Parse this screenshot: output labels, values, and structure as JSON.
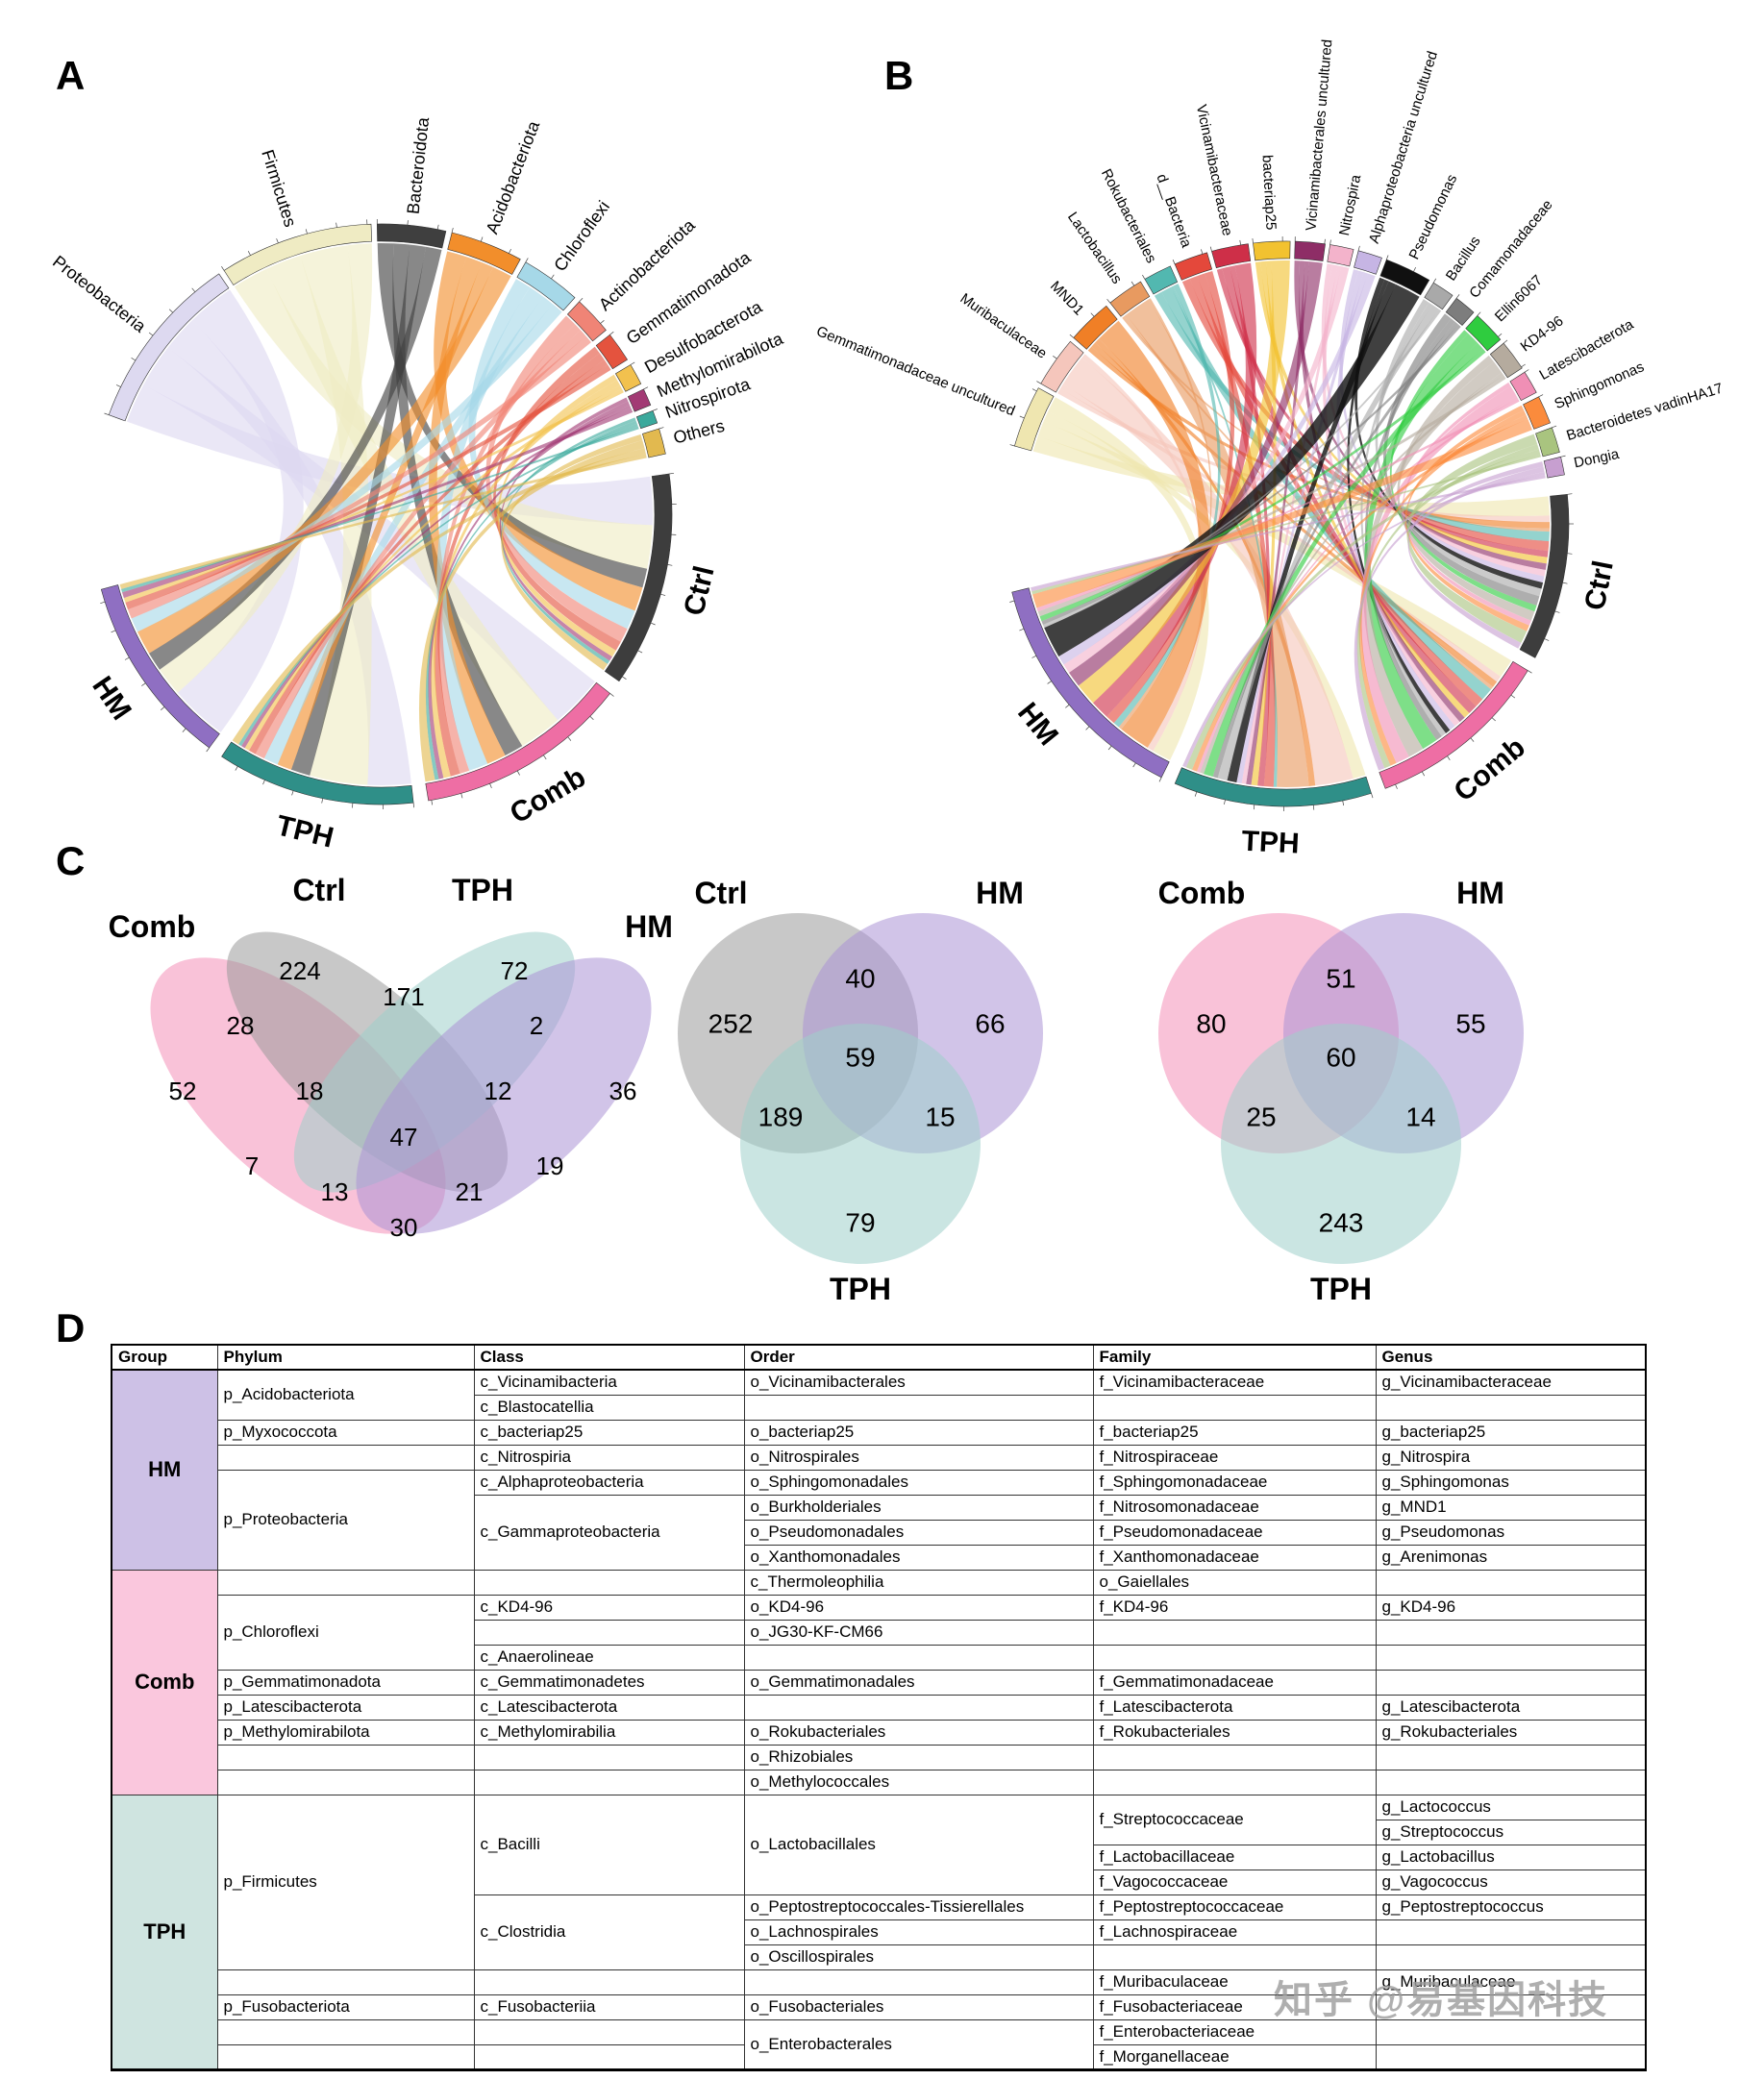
{
  "panels": {
    "a": "A",
    "b": "B",
    "c": "C",
    "d": "D"
  },
  "watermark": "知乎 @易基因科技",
  "chart_data": [
    {
      "id": "chord_phylum_vs_groups",
      "type": "chord",
      "panel": "A",
      "groups": [
        {
          "name": "Ctrl",
          "color": "#3D3D3D"
        },
        {
          "name": "Comb",
          "color": "#EE6EA4"
        },
        {
          "name": "TPH",
          "color": "#2F8F88"
        },
        {
          "name": "HM",
          "color": "#8F6FC2"
        }
      ],
      "taxa": [
        {
          "name": "Proteobacteria",
          "color": "#DDD9F0",
          "flows": [
            10,
            11,
            9,
            12
          ]
        },
        {
          "name": "Firmicutes",
          "color": "#EFEBC3",
          "flows": [
            9,
            9,
            12,
            6
          ]
        },
        {
          "name": "Bacteroidota",
          "color": "#3F3F3F",
          "flows": [
            4,
            4,
            4,
            4
          ]
        },
        {
          "name": "Acidobacteriota",
          "color": "#F28E2B",
          "flows": [
            5,
            4,
            3,
            5
          ]
        },
        {
          "name": "Chloroflexi",
          "color": "#A6D8E8",
          "flows": [
            4,
            4,
            3,
            3
          ]
        },
        {
          "name": "Actinobacteriota",
          "color": "#F08476",
          "flows": [
            3,
            2,
            2,
            2
          ]
        },
        {
          "name": "Gemmatimonadota",
          "color": "#E4533E",
          "flows": [
            2,
            2,
            1.5,
            1.5
          ]
        },
        {
          "name": "Desulfobacterota",
          "color": "#F2C14E",
          "flows": [
            1.5,
            1.5,
            1,
            1
          ]
        },
        {
          "name": "Methylomirabilota",
          "color": "#A23A74",
          "flows": [
            1,
            1,
            0.8,
            1.2
          ]
        },
        {
          "name": "Nitrospirota",
          "color": "#3BA99C",
          "flows": [
            0.8,
            0.8,
            0.7,
            0.7
          ]
        },
        {
          "name": "Others",
          "color": "#E2B94F",
          "flows": [
            1.5,
            2,
            1.5,
            1
          ]
        }
      ]
    },
    {
      "id": "chord_genus_vs_groups",
      "type": "chord",
      "panel": "B",
      "groups": [
        {
          "name": "Ctrl",
          "color": "#3D3D3D"
        },
        {
          "name": "Comb",
          "color": "#EE6EA4"
        },
        {
          "name": "TPH",
          "color": "#2F8F88"
        },
        {
          "name": "HM",
          "color": "#8F6FC2"
        }
      ],
      "taxa": [
        {
          "name": "Gemmatimonadaceae uncultured",
          "color": "#EFE6B0",
          "flows": [
            3,
            3,
            2,
            3
          ]
        },
        {
          "name": "Muribaculaceae",
          "color": "#F5C6BC",
          "flows": [
            1,
            1,
            6,
            1
          ]
        },
        {
          "name": "MND1",
          "color": "#F07F26",
          "flows": [
            1,
            1,
            1,
            5
          ]
        },
        {
          "name": "Lactobacillus",
          "color": "#E89A60",
          "flows": [
            0.5,
            0.5,
            5,
            0.5
          ]
        },
        {
          "name": "Rokubacteriales",
          "color": "#52B8B0",
          "flows": [
            1.5,
            2,
            0.5,
            1
          ]
        },
        {
          "name": "d__Bacteria",
          "color": "#E4483B",
          "flows": [
            1.5,
            1.5,
            1.5,
            1.5
          ]
        },
        {
          "name": "Vicinamibacteraceae",
          "color": "#CE2F48",
          "flows": [
            1,
            1.5,
            1,
            3
          ]
        },
        {
          "name": "bacteriap25",
          "color": "#F2C230",
          "flows": [
            1,
            1,
            1,
            3.5
          ]
        },
        {
          "name": "Vicinamibacterales uncultured",
          "color": "#8E2D66",
          "flows": [
            1,
            1,
            0.8,
            2.5
          ]
        },
        {
          "name": "Nitrospira",
          "color": "#F3B3CB",
          "flows": [
            1,
            1,
            0.7,
            1.5
          ]
        },
        {
          "name": "Alphaproteobacteria uncultured",
          "color": "#C6B5E4",
          "flows": [
            1,
            1,
            0.8,
            1.5
          ]
        },
        {
          "name": "Pseudomonas",
          "color": "#101010",
          "flows": [
            1,
            0.8,
            1.5,
            5
          ],
          "op": 0.8
        },
        {
          "name": "Bacillus",
          "color": "#A9A9A9",
          "flows": [
            1.2,
            0.8,
            1.5,
            0.5
          ]
        },
        {
          "name": "Comamonadaceae",
          "color": "#7D7D7D",
          "flows": [
            1.5,
            1,
            0.8,
            0.6
          ]
        },
        {
          "name": "Ellin6067",
          "color": "#2FCC3F",
          "flows": [
            1,
            2.5,
            1.5,
            0.8
          ]
        },
        {
          "name": "KD4-96",
          "color": "#B5AB9E",
          "flows": [
            1.5,
            2.5,
            0.6,
            0.8
          ]
        },
        {
          "name": "Latescibacterota",
          "color": "#F08FB5",
          "flows": [
            0.8,
            2.2,
            0.5,
            0.6
          ]
        },
        {
          "name": "Sphingomonas",
          "color": "#FB8B3C",
          "flows": [
            1,
            1,
            0.8,
            2.2
          ]
        },
        {
          "name": "Bacteroidetes vadinHA17",
          "color": "#A9C47F",
          "flows": [
            2,
            1,
            1,
            0.5
          ]
        },
        {
          "name": "Dongia",
          "color": "#C79FD0",
          "flows": [
            1,
            1,
            0.6,
            0.6
          ]
        }
      ]
    },
    {
      "id": "venn_comb_ctrl_tph_hm",
      "type": "venn",
      "panel": "C",
      "sets": [
        {
          "name": "Comb",
          "color": "#F48FB8"
        },
        {
          "name": "Ctrl",
          "color": "#9A9A9A"
        },
        {
          "name": "TPH",
          "color": "#9ECFCA"
        },
        {
          "name": "HM",
          "color": "#AB93D5"
        }
      ],
      "regions": {
        "A": 52,
        "B": 224,
        "C": 72,
        "D": 36,
        "AB": 28,
        "BC": 171,
        "CD": 2,
        "AC": 7,
        "BD": 19,
        "AD": 30,
        "ABC": 18,
        "ABD": 21,
        "ACD": 13,
        "BCD": 12,
        "ABCD": 47
      }
    },
    {
      "id": "venn_ctrl_hm_tph",
      "type": "venn",
      "panel": "C",
      "sets": [
        {
          "name": "Ctrl",
          "color": "#9A9A9A"
        },
        {
          "name": "HM",
          "color": "#AB93D5"
        },
        {
          "name": "TPH",
          "color": "#9ECFCA"
        }
      ],
      "regions": {
        "A": 252,
        "B": 66,
        "C": 79,
        "AB": 40,
        "AC": 189,
        "BC": 15,
        "ABC": 59
      }
    },
    {
      "id": "venn_comb_hm_tph",
      "type": "venn",
      "panel": "C",
      "sets": [
        {
          "name": "Comb",
          "color": "#F48FB8"
        },
        {
          "name": "HM",
          "color": "#AB93D5"
        },
        {
          "name": "TPH",
          "color": "#9ECFCA"
        }
      ],
      "regions": {
        "A": 80,
        "B": 55,
        "C": 243,
        "AB": 51,
        "AC": 25,
        "BC": 14,
        "ABC": 60
      }
    }
  ],
  "table": {
    "headers": [
      "Group",
      "Phylum",
      "Class",
      "Order",
      "Family",
      "Genus"
    ],
    "groups": [
      {
        "name": "HM",
        "color": "#CDC1E6",
        "rows": [
          [
            {
              "t": "p_Acidobacteriota",
              "rs": 2
            },
            "c_Vicinamibacteria",
            "o_Vicinamibacterales",
            "f_Vicinamibacteraceae",
            "g_Vicinamibacteraceae"
          ],
          [
            null,
            "c_Blastocatellia",
            "",
            "",
            ""
          ],
          [
            "p_Myxococcota",
            "c_bacteriap25",
            "o_bacteriap25",
            "f_bacteriap25",
            "g_bacteriap25"
          ],
          [
            "",
            "c_Nitrospiria",
            "o_Nitrospirales",
            "f_Nitrospiraceae",
            "g_Nitrospira"
          ],
          [
            {
              "t": "p_Proteobacteria",
              "rs": 4
            },
            "c_Alphaproteobacteria",
            "o_Sphingomonadales",
            "f_Sphingomonadaceae",
            "g_Sphingomonas"
          ],
          [
            null,
            {
              "t": "c_Gammaproteobacteria",
              "rs": 3
            },
            "o_Burkholderiales",
            "f_Nitrosomonadaceae",
            "g_MND1"
          ],
          [
            null,
            null,
            "o_Pseudomonadales",
            "f_Pseudomonadaceae",
            "g_Pseudomonas"
          ],
          [
            null,
            null,
            "o_Xanthomonadales",
            "f_Xanthomonadaceae",
            "g_Arenimonas"
          ]
        ]
      },
      {
        "name": "Comb",
        "color": "#FAC7DD",
        "rows": [
          [
            "",
            "",
            "c_Thermoleophilia",
            "o_Gaiellales",
            ""
          ],
          [
            {
              "t": "p_Chloroflexi",
              "rs": 3
            },
            "c_KD4-96",
            "o_KD4-96",
            "f_KD4-96",
            "g_KD4-96"
          ],
          [
            null,
            "",
            "o_JG30-KF-CM66",
            "",
            ""
          ],
          [
            null,
            "c_Anaerolineae",
            "",
            "",
            ""
          ],
          [
            "p_Gemmatimonadota",
            "c_Gemmatimonadetes",
            "o_Gemmatimonadales",
            "f_Gemmatimonadaceae",
            ""
          ],
          [
            "p_Latescibacterota",
            "c_Latescibacterota",
            "",
            "f_Latescibacterota",
            "g_Latescibacterota"
          ],
          [
            "p_Methylomirabilota",
            "c_Methylomirabilia",
            "o_Rokubacteriales",
            "f_Rokubacteriales",
            "g_Rokubacteriales"
          ],
          [
            "",
            "",
            "o_Rhizobiales",
            "",
            ""
          ],
          [
            "",
            "",
            "o_Methylococcales",
            "",
            ""
          ]
        ]
      },
      {
        "name": "TPH",
        "color": "#CFE4E0",
        "rows": [
          [
            {
              "t": "p_Firmicutes",
              "rs": 7
            },
            {
              "t": "c_Bacilli",
              "rs": 4
            },
            {
              "t": "o_Lactobacillales",
              "rs": 4
            },
            {
              "t": "f_Streptococcaceae",
              "rs": 2
            },
            "g_Lactococcus"
          ],
          [
            null,
            null,
            null,
            null,
            "g_Streptococcus"
          ],
          [
            null,
            null,
            null,
            "f_Lactobacillaceae",
            "g_Lactobacillus"
          ],
          [
            null,
            null,
            null,
            "f_Vagococcaceae",
            "g_Vagococcus"
          ],
          [
            null,
            {
              "t": "c_Clostridia",
              "rs": 3
            },
            "o_Peptostreptococcales-Tissierellales",
            "f_Peptostreptococcaceae",
            "g_Peptostreptococcus"
          ],
          [
            null,
            null,
            "o_Lachnospirales",
            "f_Lachnospiraceae",
            ""
          ],
          [
            null,
            null,
            "o_Oscillospirales",
            "",
            ""
          ],
          [
            "",
            "",
            "",
            "f_Muribaculaceae",
            "g_Muribaculaceae"
          ],
          [
            "p_Fusobacteriota",
            "c_Fusobacteriia",
            "o_Fusobacteriales",
            "f_Fusobacteriaceae",
            ""
          ],
          [
            "",
            "",
            {
              "t": "o_Enterobacterales",
              "rs": 2
            },
            "f_Enterobacteriaceae",
            ""
          ],
          [
            "",
            "",
            null,
            "f_Morganellaceae",
            ""
          ]
        ]
      }
    ]
  }
}
